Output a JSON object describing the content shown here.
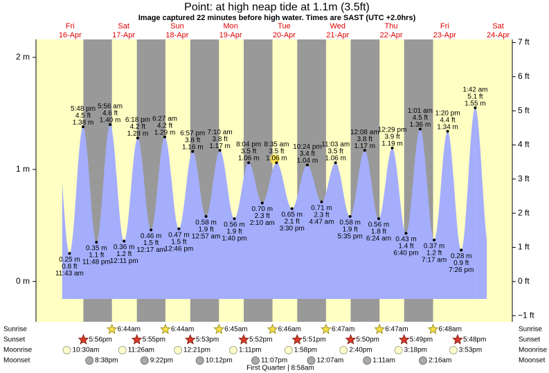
{
  "chart_data": {
    "type": "tide",
    "title": "Point: at high  neap tide at 1.1m (3.5ft)",
    "subtitle": "Image captured 22 minutes before high water. Times are SAST (UTC +2.0hrs)",
    "ylim": [
      -0.36,
      2.16
    ],
    "yticks": [
      {
        "value": 0,
        "label": "0 m"
      },
      {
        "value": 1,
        "label": "1 m"
      },
      {
        "value": 2,
        "label": "2 m"
      }
    ],
    "y2lim": [
      -1.18,
      7.09
    ],
    "y2ticks": [
      {
        "value": -1,
        "label": "−1 ft"
      },
      {
        "value": 0,
        "label": "0 ft"
      },
      {
        "value": 1,
        "label": "1 ft"
      },
      {
        "value": 2,
        "label": "2 ft"
      },
      {
        "value": 3,
        "label": "3 ft"
      },
      {
        "value": 4,
        "label": "4 ft"
      },
      {
        "value": 5,
        "label": "5 ft"
      },
      {
        "value": 6,
        "label": "6 ft"
      },
      {
        "value": 7,
        "label": "7 ft"
      }
    ],
    "color": "#a4aefc",
    "row_labels": {
      "sunrise": "Sunrise",
      "sunset": "Sunset",
      "moonrise": "Moonrise",
      "moonset": "Moonset"
    },
    "moon_phase": "First Quarter | 8:58am",
    "days": [
      {
        "weekday": "Fri",
        "date": "16-Apr",
        "sunrise": null,
        "sunset": "5:56pm",
        "moonrise": "10:30am",
        "moonset": "8:38pm",
        "tides": [
          {
            "time": "11:43 am",
            "m": 0.25,
            "m_label": "0.25 m",
            "ft_label": "0.8 ft"
          },
          {
            "time": "5:48 pm",
            "m": 1.38,
            "m_label": "1.38 m",
            "ft_label": "4.5 ft"
          },
          {
            "time": "11:48 pm",
            "m": 0.35,
            "m_label": "0.35 m",
            "ft_label": "1.1 ft"
          }
        ]
      },
      {
        "weekday": "Sat",
        "date": "17-Apr",
        "sunrise": "6:44am",
        "sunset": "5:55pm",
        "moonrise": "11:26am",
        "moonset": "9:22pm",
        "tides": [
          {
            "time": "5:56 am",
            "m": 1.4,
            "m_label": "1.40 m",
            "ft_label": "4.6 ft"
          },
          {
            "time": "12:11 pm",
            "m": 0.36,
            "m_label": "0.36 m",
            "ft_label": "1.2 ft"
          },
          {
            "time": "6:18 pm",
            "m": 1.28,
            "m_label": "1.28 m",
            "ft_label": "4.2 ft"
          }
        ]
      },
      {
        "weekday": "Sun",
        "date": "18-Apr",
        "sunrise": "6:44am",
        "sunset": "5:53pm",
        "moonrise": "12:21pm",
        "moonset": "10:12pm",
        "tides": [
          {
            "time": "12:17 am",
            "m": 0.46,
            "m_label": "0.46 m",
            "ft_label": "1.5 ft"
          },
          {
            "time": "6:27 am",
            "m": 1.29,
            "m_label": "1.29 m",
            "ft_label": "4.2 ft"
          },
          {
            "time": "12:46 pm",
            "m": 0.47,
            "m_label": "0.47 m",
            "ft_label": "1.5 ft"
          },
          {
            "time": "6:57 pm",
            "m": 1.16,
            "m_label": "1.16 m",
            "ft_label": "3.8 ft"
          }
        ]
      },
      {
        "weekday": "Mon",
        "date": "19-Apr",
        "sunrise": "6:45am",
        "sunset": "5:52pm",
        "moonrise": "1:11pm",
        "moonset": "11:07pm",
        "tides": [
          {
            "time": "12:57 am",
            "m": 0.58,
            "m_label": "0.58 m",
            "ft_label": "1.9 ft"
          },
          {
            "time": "7:10 am",
            "m": 1.17,
            "m_label": "1.17 m",
            "ft_label": "3.8 ft"
          },
          {
            "time": "1:40 pm",
            "m": 0.56,
            "m_label": "0.56 m",
            "ft_label": "1.9 ft"
          },
          {
            "time": "8:04 pm",
            "m": 1.06,
            "m_label": "1.06 m",
            "ft_label": "3.5 ft"
          }
        ]
      },
      {
        "weekday": "Tue",
        "date": "20-Apr",
        "sunrise": "6:46am",
        "sunset": "5:51pm",
        "moonrise": "1:58pm",
        "moonset": null,
        "tides": [
          {
            "time": "2:10 am",
            "m": 0.7,
            "m_label": "0.70 m",
            "ft_label": "2.3 ft"
          },
          {
            "time": "8:35 am",
            "m": 1.06,
            "m_label": "1.06 m",
            "ft_label": "3.5 ft"
          },
          {
            "time": "3:30 pm",
            "m": 0.65,
            "m_label": "0.65 m",
            "ft_label": "2.1 ft"
          },
          {
            "time": "10:24 pm",
            "m": 1.04,
            "m_label": "1.04 m",
            "ft_label": "3.4 ft"
          }
        ]
      },
      {
        "weekday": "Wed",
        "date": "21-Apr",
        "sunrise": "6:47am",
        "sunset": "5:50pm",
        "moonrise": "2:40pm",
        "moonset": "12:07am",
        "tides": [
          {
            "time": "4:47 am",
            "m": 0.71,
            "m_label": "0.71 m",
            "ft_label": "2.3 ft"
          },
          {
            "time": "11:03 am",
            "m": 1.06,
            "m_label": "1.06 m",
            "ft_label": "3.5 ft"
          },
          {
            "time": "5:35 pm",
            "m": 0.58,
            "m_label": "0.58 m",
            "ft_label": "1.9 ft"
          }
        ]
      },
      {
        "weekday": "Thu",
        "date": "22-Apr",
        "sunrise": "6:47am",
        "sunset": "5:49pm",
        "moonrise": "3:18pm",
        "moonset": "1:11am",
        "tides": [
          {
            "time": "12:08 am",
            "m": 1.17,
            "m_label": "1.17 m",
            "ft_label": "3.8 ft"
          },
          {
            "time": "6:24 am",
            "m": 0.56,
            "m_label": "0.56 m",
            "ft_label": "1.8 ft"
          },
          {
            "time": "12:29 pm",
            "m": 1.19,
            "m_label": "1.19 m",
            "ft_label": "3.9 ft"
          },
          {
            "time": "6:40 pm",
            "m": 0.43,
            "m_label": "0.43 m",
            "ft_label": "1.4 ft"
          }
        ]
      },
      {
        "weekday": "Fri",
        "date": "23-Apr",
        "sunrise": "6:48am",
        "sunset": "5:48pm",
        "moonrise": "3:53pm",
        "moonset": "2:16am",
        "tides": [
          {
            "time": "1:01 am",
            "m": 1.36,
            "m_label": "1.36 m",
            "ft_label": "4.5 ft"
          },
          {
            "time": "7:17 am",
            "m": 0.37,
            "m_label": "0.37 m",
            "ft_label": "1.2 ft"
          },
          {
            "time": "1:20 pm",
            "m": 1.34,
            "m_label": "1.34 m",
            "ft_label": "4.4 ft"
          },
          {
            "time": "7:26 pm",
            "m": 0.28,
            "m_label": "0.28 m",
            "ft_label": "0.9 ft"
          }
        ]
      },
      {
        "weekday": "Sat",
        "date": "24-Apr",
        "sunrise": null,
        "sunset": null,
        "moonrise": null,
        "moonset": null,
        "tides": [
          {
            "time": "1:42 am",
            "m": 1.55,
            "m_label": "1.55 m",
            "ft_label": "5.1 ft"
          }
        ]
      }
    ]
  }
}
